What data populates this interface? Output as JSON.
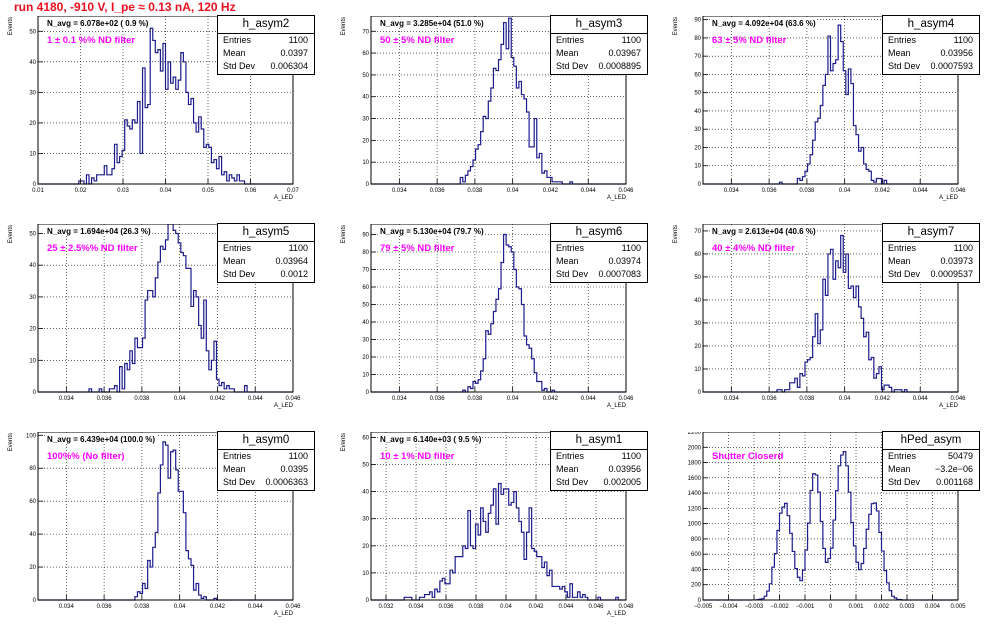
{
  "title": "run 4180,  -910 V, I_pe ≈ 0.13 nA, 120 Hz",
  "colors": {
    "title": "#e8101e",
    "hist": "#1c1c8c",
    "filter_text": "#ff00ff",
    "grid": "#000000"
  },
  "chart_data": [
    {
      "type": "bar",
      "name": "h_asym2",
      "ylabel": "Events",
      "xlabel": "A_LED",
      "navg": "N_avg = 6.078e+02 ( 0.9 %)",
      "filter": "1 ± 0.1 %% ND filter",
      "stats": {
        "entries_label": "Entries",
        "entries": "1100",
        "mean_label": "Mean",
        "mean": "0.0397",
        "std_label": "Std Dev",
        "std": "0.006304"
      },
      "xlim": [
        0.01,
        0.07
      ],
      "ylim": [
        0,
        55
      ],
      "xticks": [
        "0.01",
        "0.02",
        "0.03",
        "0.04",
        "0.05",
        "0.06",
        "0.07"
      ],
      "yticks": [
        "0",
        "10",
        "20",
        "30",
        "40",
        "50"
      ],
      "grid": true,
      "curve": {
        "mean": 0.0397,
        "sigma": 0.0063,
        "n": 1100,
        "bins": 100,
        "seed": 2
      }
    },
    {
      "type": "bar",
      "name": "h_asym3",
      "ylabel": "Events",
      "xlabel": "A_LED",
      "navg": "N_avg = 3.285e+04 (51.0 %)",
      "filter": "50 ± 5% ND filter",
      "stats": {
        "entries_label": "Entries",
        "entries": "1100",
        "mean_label": "Mean",
        "mean": "0.03967",
        "std_label": "Std Dev",
        "std": "0.0008895"
      },
      "xlim": [
        0.0325,
        0.046
      ],
      "ylim": [
        0,
        77
      ],
      "xticks": [
        "0.034",
        "0.036",
        "0.038",
        "0.04",
        "0.042",
        "0.044",
        "0.046"
      ],
      "yticks": [
        "0",
        "10",
        "20",
        "30",
        "40",
        "50",
        "60",
        "70"
      ],
      "grid": true,
      "curve": {
        "mean": 0.03967,
        "sigma": 0.00089,
        "n": 1100,
        "bins": 100,
        "seed": 3
      }
    },
    {
      "type": "bar",
      "name": "h_asym4",
      "ylabel": "Events",
      "xlabel": "A_LED",
      "navg": "N_avg = 4.092e+04 (63.6 %)",
      "filter": "63 ± 5% ND filter",
      "stats": {
        "entries_label": "Entries",
        "entries": "1100",
        "mean_label": "Mean",
        "mean": "0.03956",
        "std_label": "Std Dev",
        "std": "0.0007593"
      },
      "xlim": [
        0.0325,
        0.046
      ],
      "ylim": [
        0,
        92
      ],
      "xticks": [
        "0.034",
        "0.036",
        "0.038",
        "0.04",
        "0.042",
        "0.044",
        "0.046"
      ],
      "yticks": [
        "0",
        "10",
        "20",
        "30",
        "40",
        "50",
        "60",
        "70",
        "80",
        "90"
      ],
      "grid": true,
      "curve": {
        "mean": 0.03956,
        "sigma": 0.00076,
        "n": 1100,
        "bins": 100,
        "seed": 4
      }
    },
    {
      "type": "bar",
      "name": "h_asym5",
      "ylabel": "Events",
      "xlabel": "A_LED",
      "navg": "N_avg = 1.694e+04 (26.3 %)",
      "filter": "25 ± 2.5%% ND filter",
      "stats": {
        "entries_label": "Entries",
        "entries": "1100",
        "mean_label": "Mean",
        "mean": "0.03964",
        "std_label": "Std Dev",
        "std": "0.0012"
      },
      "xlim": [
        0.0325,
        0.046
      ],
      "ylim": [
        0,
        53
      ],
      "xticks": [
        "0.034",
        "0.036",
        "0.038",
        "0.04",
        "0.042",
        "0.044",
        "0.046"
      ],
      "yticks": [
        "0",
        "10",
        "20",
        "30",
        "40",
        "50"
      ],
      "grid": true,
      "curve": {
        "mean": 0.03964,
        "sigma": 0.0012,
        "n": 1100,
        "bins": 100,
        "seed": 5
      }
    },
    {
      "type": "bar",
      "name": "h_asym6",
      "ylabel": "Events",
      "xlabel": "A_LED",
      "navg": "N_avg = 5.130e+04 (79.7 %)",
      "filter": "79 ± 5% ND filter",
      "stats": {
        "entries_label": "Entries",
        "entries": "1100",
        "mean_label": "Mean",
        "mean": "0.03974",
        "std_label": "Std Dev",
        "std": "0.0007083"
      },
      "xlim": [
        0.0325,
        0.046
      ],
      "ylim": [
        0,
        96
      ],
      "xticks": [
        "0.034",
        "0.036",
        "0.038",
        "0.04",
        "0.042",
        "0.044",
        "0.046"
      ],
      "yticks": [
        "0",
        "10",
        "20",
        "30",
        "40",
        "50",
        "60",
        "70",
        "80",
        "90"
      ],
      "grid": true,
      "curve": {
        "mean": 0.03974,
        "sigma": 0.00071,
        "n": 1100,
        "bins": 100,
        "seed": 6
      }
    },
    {
      "type": "bar",
      "name": "h_asym7",
      "ylabel": "Events",
      "xlabel": "A_LED",
      "navg": "N_avg = 2.613e+04 (40.6 %)",
      "filter": "40 ± 4%% ND filter",
      "stats": {
        "entries_label": "Entries",
        "entries": "1100",
        "mean_label": "Mean",
        "mean": "0.03973",
        "std_label": "Std Dev",
        "std": "0.0009537"
      },
      "xlim": [
        0.0325,
        0.046
      ],
      "ylim": [
        0,
        73
      ],
      "xticks": [
        "0.034",
        "0.036",
        "0.038",
        "0.04",
        "0.042",
        "0.044",
        "0.046"
      ],
      "yticks": [
        "0",
        "10",
        "20",
        "30",
        "40",
        "50",
        "60",
        "70"
      ],
      "grid": true,
      "curve": {
        "mean": 0.03973,
        "sigma": 0.00095,
        "n": 1100,
        "bins": 100,
        "seed": 7
      }
    },
    {
      "type": "bar",
      "name": "h_asym0",
      "ylabel": "Events",
      "xlabel": "A_LED",
      "navg": "N_avg = 6.439e+04 (100.0 %)",
      "filter": "100%% (No filter)",
      "stats": {
        "entries_label": "Entries",
        "entries": "1100",
        "mean_label": "Mean",
        "mean": "0.0395",
        "std_label": "Std Dev",
        "std": "0.0006363"
      },
      "xlim": [
        0.0325,
        0.046
      ],
      "ylim": [
        0,
        102
      ],
      "xticks": [
        "0.034",
        "0.036",
        "0.038",
        "0.04",
        "0.042",
        "0.044",
        "0.046"
      ],
      "yticks": [
        "0",
        "20",
        "40",
        "60",
        "80",
        "100"
      ],
      "grid": true,
      "curve": {
        "mean": 0.0395,
        "sigma": 0.00064,
        "n": 1100,
        "bins": 100,
        "seed": 8
      }
    },
    {
      "type": "bar",
      "name": "h_asym1",
      "ylabel": "Events",
      "xlabel": "A_LED",
      "navg": "N_avg = 6.140e+03 ( 9.5 %)",
      "filter": "10 ± 1% ND filter",
      "stats": {
        "entries_label": "Entries",
        "entries": "1100",
        "mean_label": "Mean",
        "mean": "0.03956",
        "std_label": "Std Dev",
        "std": "0.002005"
      },
      "xlim": [
        0.031,
        0.048
      ],
      "ylim": [
        0,
        62
      ],
      "xticks": [
        "0.032",
        "0.034",
        "0.036",
        "0.038",
        "0.04",
        "0.042",
        "0.044",
        "0.046",
        "0.048"
      ],
      "yticks": [
        "0",
        "10",
        "20",
        "30",
        "40",
        "50",
        "60"
      ],
      "grid": true,
      "curve": {
        "mean": 0.03956,
        "sigma": 0.002,
        "n": 1100,
        "bins": 100,
        "seed": 9
      }
    },
    {
      "type": "bar",
      "name": "hPed_asym",
      "ylabel": "",
      "xlabel": "",
      "navg": "",
      "filter": "Shutter Closerd",
      "stats": {
        "entries_label": "Entries",
        "entries": "50479",
        "mean_label": "Mean",
        "mean": "−3.2e−06",
        "std_label": "Std Dev",
        "std": "0.001168"
      },
      "xlim": [
        -0.005,
        0.005
      ],
      "ylim": [
        0,
        2200
      ],
      "xticks": [
        "−0.005",
        "−0.004",
        "−0.003",
        "−0.002",
        "−0.001",
        "0",
        "0.001",
        "0.002",
        "0.003",
        "0.004",
        "0.005"
      ],
      "yticks": [
        "0",
        "200",
        "400",
        "600",
        "800",
        "1000",
        "1200",
        "1400",
        "1600",
        "1800",
        "2000",
        "2200"
      ],
      "grid": true,
      "curve": {
        "multi": true,
        "peaks": [
          [
            -0.0018,
            0.0003,
            1250
          ],
          [
            -0.0006,
            0.00025,
            1650
          ],
          [
            0.0005,
            0.0003,
            1950
          ],
          [
            0.0017,
            0.0003,
            1280
          ]
        ],
        "bins": 100,
        "seed": 10
      }
    }
  ]
}
